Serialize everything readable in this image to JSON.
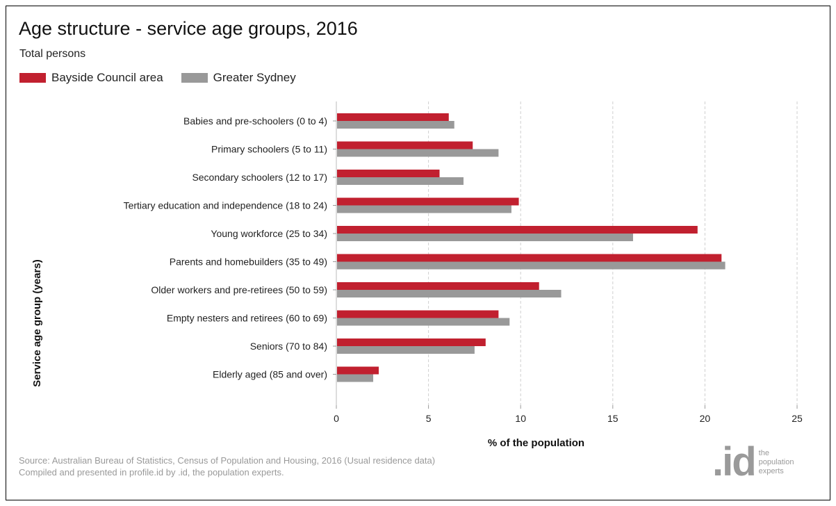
{
  "header": {
    "title": "Age structure - service age groups, 2016",
    "subtitle": "Total persons"
  },
  "legend": [
    {
      "label": "Bayside Council area",
      "color": "#c1202f"
    },
    {
      "label": "Greater Sydney",
      "color": "#999999"
    }
  ],
  "footer": {
    "source_line1": "Source: Australian Bureau of Statistics, Census of Population and Housing, 2016 (Usual residence data)",
    "source_line2": "Compiled and presented in profile.id by .id, the population experts.",
    "logo_mark": ".id",
    "logo_tag": [
      "the",
      "population",
      "experts"
    ]
  },
  "chart_data": {
    "type": "bar",
    "orientation": "horizontal",
    "categories": [
      "Babies and pre-schoolers (0 to 4)",
      "Primary schoolers (5 to 11)",
      "Secondary schoolers (12 to 17)",
      "Tertiary education and independence (18 to 24)",
      "Young workforce (25 to 34)",
      "Parents and homebuilders (35 to 49)",
      "Older workers and pre-retirees (50 to 59)",
      "Empty nesters and retirees (60 to 69)",
      "Seniors (70 to 84)",
      "Elderly aged (85 and over)"
    ],
    "series": [
      {
        "name": "Bayside Council area",
        "color": "#c1202f",
        "values": [
          6.1,
          7.4,
          5.6,
          9.9,
          19.6,
          20.9,
          11.0,
          8.8,
          8.1,
          2.3
        ]
      },
      {
        "name": "Greater Sydney",
        "color": "#999999",
        "values": [
          6.4,
          8.8,
          6.9,
          9.5,
          16.1,
          21.1,
          12.2,
          9.4,
          7.5,
          2.0
        ]
      }
    ],
    "xlabel": "% of the population",
    "ylabel": "Service age group (years)",
    "xlim": [
      0,
      25
    ],
    "xticks": [
      0,
      5,
      10,
      15,
      20,
      25
    ],
    "grid": "vertical dashed"
  }
}
